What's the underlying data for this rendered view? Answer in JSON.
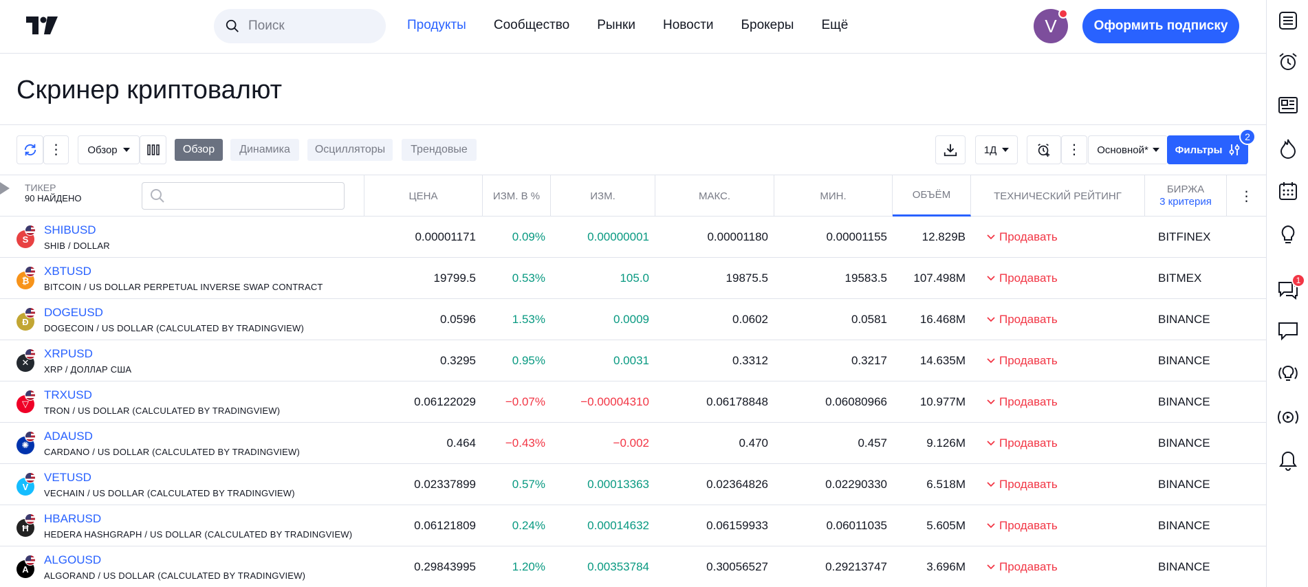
{
  "header": {
    "search_placeholder": "Поиск",
    "nav": [
      "Продукты",
      "Сообщество",
      "Рынки",
      "Новости",
      "Брокеры",
      "Ещё"
    ],
    "avatar_letter": "V",
    "subscribe_label": "Оформить подписку"
  },
  "page": {
    "title": "Скринер криптовалют"
  },
  "toolbar": {
    "view_select": "Обзор",
    "tabs": [
      "Обзор",
      "Динамика",
      "Осцилляторы",
      "Трендовые"
    ],
    "interval": "1Д",
    "preset": "Основной*",
    "filters_label": "Фильтры",
    "filters_count": "2"
  },
  "table": {
    "ticker_header": "ТИКЕР",
    "found_count": "90 НАЙДЕНО",
    "columns": [
      "ЦЕНА",
      "ИЗМ. В %",
      "ИЗМ.",
      "МАКС.",
      "МИН.",
      "ОБЪЁМ",
      "ТЕХНИЧЕСКИЙ РЕЙТИНГ",
      "БИРЖА"
    ],
    "exchange_sub": "3 критерия",
    "rows": [
      {
        "symbol": "SHIBUSD",
        "desc": "SHIB / DOLLAR",
        "price": "0.00001171",
        "chg_pct": "0.09%",
        "chg": "0.00000001",
        "high": "0.00001180",
        "low": "0.00001155",
        "volume": "12.829B",
        "rating": "Продавать",
        "exchange": "BITFINEX",
        "dir": "pos",
        "icon_color": "#e84142",
        "icon_glyph": "S"
      },
      {
        "symbol": "XBTUSD",
        "desc": "BITCOIN / US DOLLAR PERPETUAL INVERSE SWAP CONTRACT",
        "price": "19799.5",
        "chg_pct": "0.53%",
        "chg": "105.0",
        "high": "19875.5",
        "low": "19583.5",
        "volume": "107.498M",
        "rating": "Продавать",
        "exchange": "BITMEX",
        "dir": "pos",
        "icon_color": "#f7931a",
        "icon_glyph": "₿"
      },
      {
        "symbol": "DOGEUSD",
        "desc": "DOGECOIN / US DOLLAR (CALCULATED BY TRADINGVIEW)",
        "price": "0.0596",
        "chg_pct": "1.53%",
        "chg": "0.0009",
        "high": "0.0602",
        "low": "0.0581",
        "volume": "16.468M",
        "rating": "Продавать",
        "exchange": "BINANCE",
        "dir": "pos",
        "icon_color": "#c2a633",
        "icon_glyph": "Ð"
      },
      {
        "symbol": "XRPUSD",
        "desc": "XRP / ДОЛЛАР США",
        "price": "0.3295",
        "chg_pct": "0.95%",
        "chg": "0.0031",
        "high": "0.3312",
        "low": "0.3217",
        "volume": "14.635M",
        "rating": "Продавать",
        "exchange": "BINANCE",
        "dir": "pos",
        "icon_color": "#23292f",
        "icon_glyph": "✕"
      },
      {
        "symbol": "TRXUSD",
        "desc": "TRON / US DOLLAR (CALCULATED BY TRADINGVIEW)",
        "price": "0.06122029",
        "chg_pct": "−0.07%",
        "chg": "−0.00004310",
        "high": "0.06178848",
        "low": "0.06080966",
        "volume": "10.977M",
        "rating": "Продавать",
        "exchange": "BINANCE",
        "dir": "neg",
        "icon_color": "#ef0027",
        "icon_glyph": "▽"
      },
      {
        "symbol": "ADAUSD",
        "desc": "CARDANO / US DOLLAR (CALCULATED BY TRADINGVIEW)",
        "price": "0.464",
        "chg_pct": "−0.43%",
        "chg": "−0.002",
        "high": "0.470",
        "low": "0.457",
        "volume": "9.126M",
        "rating": "Продавать",
        "exchange": "BINANCE",
        "dir": "neg",
        "icon_color": "#0033ad",
        "icon_glyph": "✺"
      },
      {
        "symbol": "VETUSD",
        "desc": "VECHAIN / US DOLLAR (CALCULATED BY TRADINGVIEW)",
        "price": "0.02337899",
        "chg_pct": "0.57%",
        "chg": "0.00013363",
        "high": "0.02364826",
        "low": "0.02290330",
        "volume": "6.518M",
        "rating": "Продавать",
        "exchange": "BINANCE",
        "dir": "pos",
        "icon_color": "#15bdff",
        "icon_glyph": "V"
      },
      {
        "symbol": "HBARUSD",
        "desc": "HEDERA HASHGRAPH / US DOLLAR (CALCULATED BY TRADINGVIEW)",
        "price": "0.06121809",
        "chg_pct": "0.24%",
        "chg": "0.00014632",
        "high": "0.06159933",
        "low": "0.06011035",
        "volume": "5.605M",
        "rating": "Продавать",
        "exchange": "BINANCE",
        "dir": "pos",
        "icon_color": "#222222",
        "icon_glyph": "Ħ"
      },
      {
        "symbol": "ALGOUSD",
        "desc": "ALGORAND / US DOLLAR (CALCULATED BY TRADINGVIEW)",
        "price": "0.29843995",
        "chg_pct": "1.20%",
        "chg": "0.00353784",
        "high": "0.30056527",
        "low": "0.29213747",
        "volume": "3.696M",
        "rating": "Продавать",
        "exchange": "BINANCE",
        "dir": "pos",
        "icon_color": "#000000",
        "icon_glyph": "A"
      }
    ]
  },
  "sidebar": {
    "icons": [
      "watchlist-icon",
      "alarm-clock-icon",
      "news-icon",
      "hotlist-icon",
      "calendar-icon",
      "idea-bulb-icon",
      "chat-icon",
      "messages-icon",
      "streams-icon",
      "broadcast-icon",
      "notifications-icon"
    ],
    "chat_badge": "1"
  },
  "colors": {
    "accent": "#2962ff",
    "positive": "#089981",
    "negative": "#f23645"
  }
}
